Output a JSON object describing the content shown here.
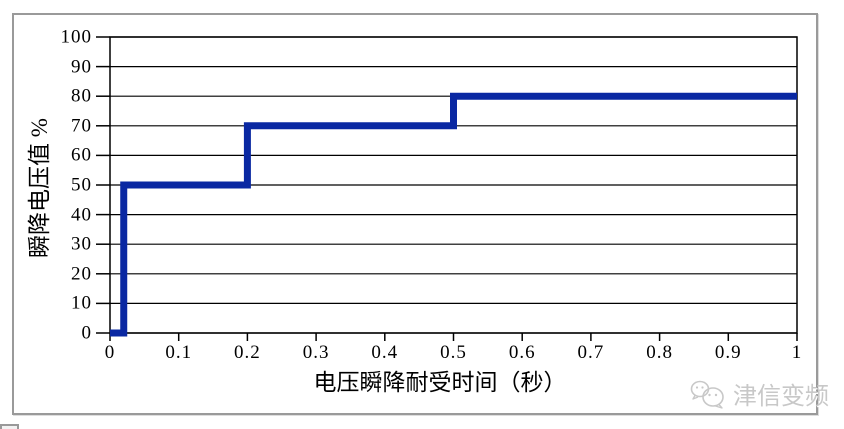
{
  "chart_data": {
    "type": "line",
    "line_style": "step",
    "title": "",
    "xlabel": "电压瞬降耐受时间（秒）",
    "ylabel": "瞬降电压值 %",
    "xlim": [
      0,
      1
    ],
    "ylim": [
      0,
      100
    ],
    "x_ticks": [
      0,
      0.1,
      0.2,
      0.3,
      0.4,
      0.5,
      0.6,
      0.7,
      0.8,
      0.9,
      1
    ],
    "x_tick_labels": [
      "0",
      "0.1",
      "0.2",
      "0.3",
      "0.4",
      "0.5",
      "0.6",
      "0.7",
      "0.8",
      "0.9",
      "1"
    ],
    "y_ticks": [
      0,
      10,
      20,
      30,
      40,
      50,
      60,
      70,
      80,
      90,
      100
    ],
    "y_tick_labels": [
      "0",
      "10",
      "20",
      "30",
      "40",
      "50",
      "60",
      "70",
      "80",
      "90",
      "100"
    ],
    "grid": "horizontal",
    "legend": "none",
    "series": [
      {
        "name": "voltage-sag-tolerance",
        "color": "#0A28A2",
        "stroke_width": 7,
        "points": [
          [
            0,
            0
          ],
          [
            0.02,
            0
          ],
          [
            0.02,
            50
          ],
          [
            0.2,
            50
          ],
          [
            0.2,
            70
          ],
          [
            0.5,
            70
          ],
          [
            0.5,
            80
          ],
          [
            1,
            80
          ]
        ]
      }
    ]
  },
  "watermark": {
    "icon": "wechat-icon",
    "text": "津信变频",
    "color": "#c8c8c8"
  },
  "colors": {
    "background": "#ffffff",
    "frame_border": "#9a9a9a",
    "axis": "#000000",
    "grid": "#000000",
    "tick_text": "#000000",
    "series_line": "#0A28A2"
  }
}
